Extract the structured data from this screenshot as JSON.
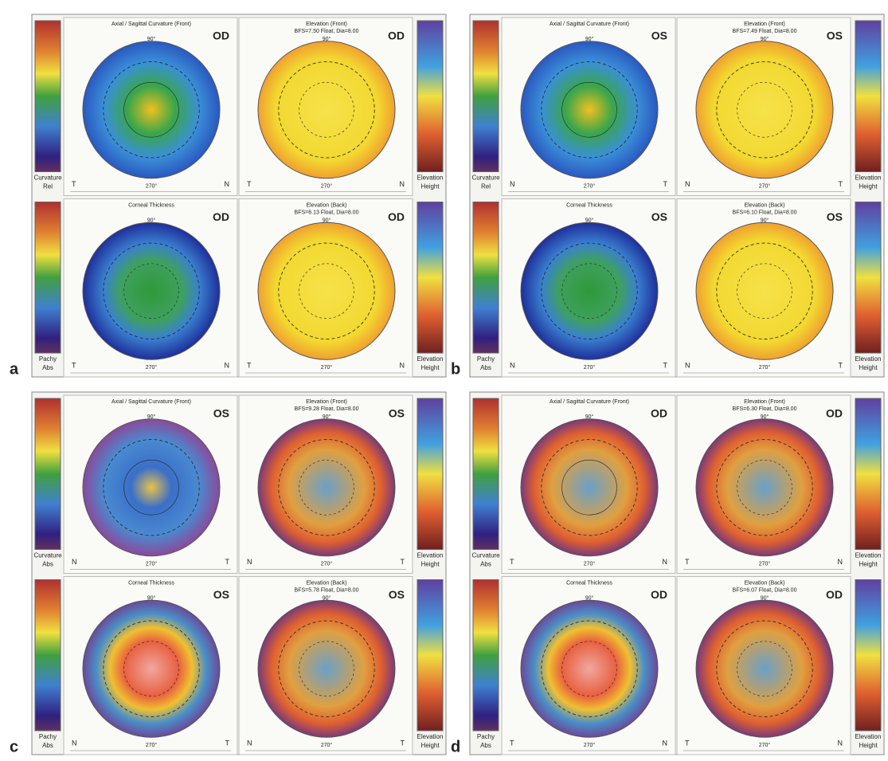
{
  "panels": [
    {
      "letter": "a",
      "angles": [
        "90°",
        "270°"
      ],
      "sides": [
        "T",
        "N"
      ],
      "scales": [
        {
          "top": "Curvature",
          "bottom": "Rel"
        },
        {
          "top": "Elevation",
          "bottom": "Height"
        },
        {
          "top": "Pachy",
          "bottom": "Abs"
        },
        {
          "top": "Elevation",
          "bottom": "Height"
        }
      ],
      "maps": [
        {
          "title": "Axial / Sagittal Curvature (Front)",
          "eye": "OD"
        },
        {
          "title": "Elevation (Front)",
          "subtitle": "BFS=7.50 Float, Dia=8.00",
          "eye": "OD"
        },
        {
          "title": "Corneal Thickness",
          "eye": "OD"
        },
        {
          "title": "Elevation (Back)",
          "subtitle": "BFS=6.13 Float, Dia=8.00",
          "eye": "OD"
        }
      ]
    },
    {
      "letter": "b",
      "angles": [
        "90°",
        "270°"
      ],
      "sides": [
        "N",
        "T"
      ],
      "scales": [
        {
          "top": "Curvature",
          "bottom": "Rel"
        },
        {
          "top": "Elevation",
          "bottom": "Height"
        },
        {
          "top": "Pachy",
          "bottom": "Abs"
        },
        {
          "top": "Elevation",
          "bottom": "Height"
        }
      ],
      "maps": [
        {
          "title": "Axial / Sagittal Curvature (Front)",
          "eye": "OS"
        },
        {
          "title": "Elevation (Front)",
          "subtitle": "BFS=7.49 Float, Dia=8.00",
          "eye": "OS"
        },
        {
          "title": "Corneal Thickness",
          "eye": "OS"
        },
        {
          "title": "Elevation (Back)",
          "subtitle": "BFS=6.10 Float, Dia=8.00",
          "eye": "OS"
        }
      ]
    },
    {
      "letter": "c",
      "angles": [
        "90°",
        "270°"
      ],
      "sides": [
        "N",
        "T"
      ],
      "scales": [
        {
          "top": "Curvature",
          "bottom": "Abs"
        },
        {
          "top": "Elevation",
          "bottom": "Height"
        },
        {
          "top": "Pachy",
          "bottom": "Abs"
        },
        {
          "top": "Elevation",
          "bottom": "Height"
        }
      ],
      "maps": [
        {
          "title": "Axial / Sagittal Curvature (Front)",
          "eye": "OS"
        },
        {
          "title": "Elevation (Front)",
          "subtitle": "BFS=9.28 Float, Dia=8.00",
          "eye": "OS"
        },
        {
          "title": "Corneal Thickness",
          "eye": "OS"
        },
        {
          "title": "Elevation (Back)",
          "subtitle": "BFS=5.78 Float, Dia=8.00",
          "eye": "OS"
        }
      ]
    },
    {
      "letter": "d",
      "angles": [
        "90°",
        "270°"
      ],
      "sides": [
        "T",
        "N"
      ],
      "scales": [
        {
          "top": "Curvature",
          "bottom": "Abs"
        },
        {
          "top": "Elevation",
          "bottom": "Height"
        },
        {
          "top": "Pachy",
          "bottom": "Abs"
        },
        {
          "top": "Elevation",
          "bottom": "Height"
        }
      ],
      "maps": [
        {
          "title": "Axial / Sagittal Curvature (Front)",
          "eye": "OD"
        },
        {
          "title": "Elevation (Front)",
          "subtitle": "BFS=6.30 Float, Dia=8.00",
          "eye": "OD"
        },
        {
          "title": "Corneal Thickness",
          "eye": "OD"
        },
        {
          "title": "Elevation (Back)",
          "subtitle": "BFS=6.07 Float, Dia=8.00",
          "eye": "OD"
        }
      ]
    }
  ]
}
